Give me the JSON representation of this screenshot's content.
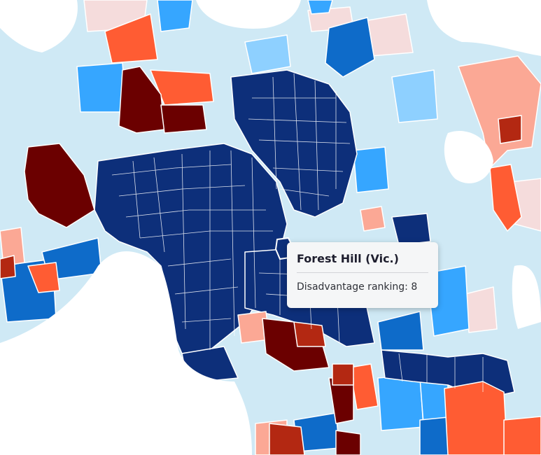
{
  "tooltip": {
    "title": "Forest Hill (Vic.)",
    "label": "Disadvantage ranking:",
    "value": "8"
  },
  "map": {
    "hovered_region": "Forest Hill (Vic.)",
    "colors": {
      "rank_1": "#6b0000",
      "rank_2": "#b32812",
      "rank_3": "#ff5c33",
      "rank_4": "#fba895",
      "rank_5": "#f5dcdc",
      "rank_6": "#cfe9f5",
      "rank_7": "#8ed0ff",
      "rank_8": "#0d2f7a",
      "rank_9": "#36a6ff",
      "rank_10": "#0e6bc9",
      "water": "#ffffff",
      "boundary": "#ffffff"
    }
  }
}
